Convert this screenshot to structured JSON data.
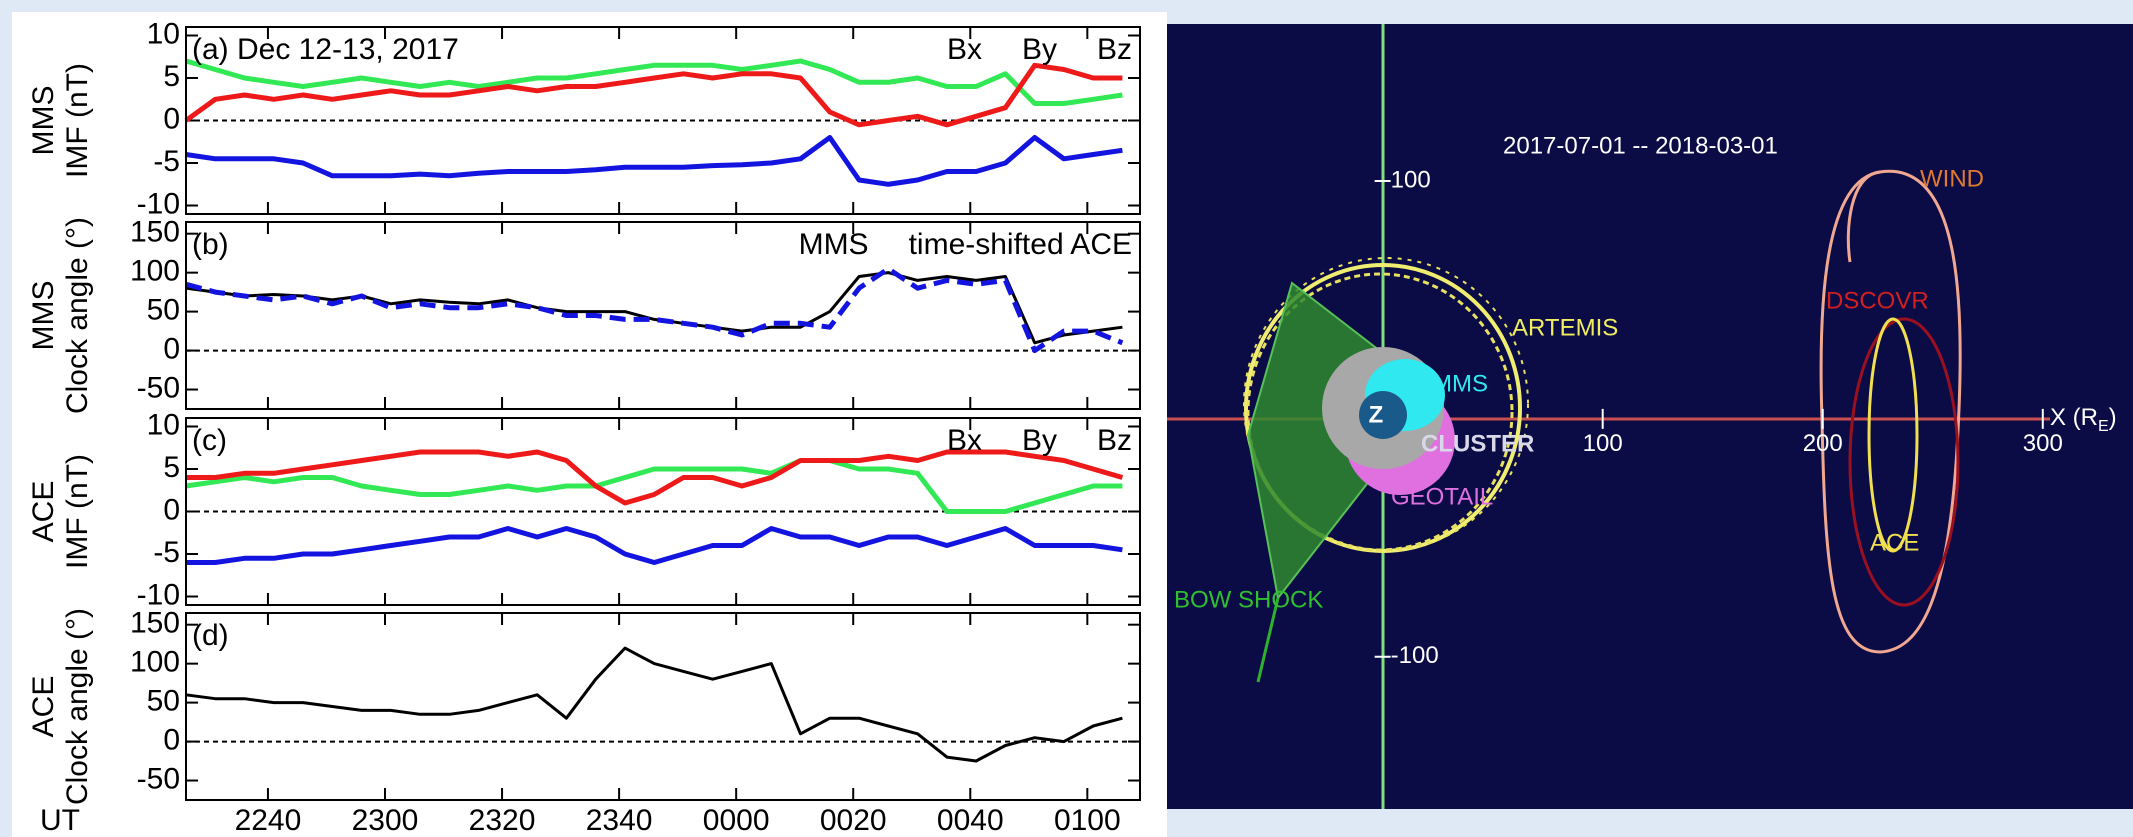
{
  "chart_data": [
    {
      "type": "line",
      "annotation": "(a) Dec 12-13, 2017",
      "ylabel": [
        "MMS",
        "IMF (nT)"
      ],
      "x": [
        "2226",
        "2231",
        "2236",
        "2241",
        "2246",
        "2251",
        "2256",
        "2301",
        "2306",
        "2311",
        "2316",
        "2321",
        "2326",
        "2331",
        "2336",
        "2341",
        "2346",
        "2351",
        "2356",
        "0001",
        "0006",
        "0011",
        "0016",
        "0021",
        "0026",
        "0031",
        "0036",
        "0041",
        "0046",
        "0051",
        "0056",
        "0101",
        "0106"
      ],
      "xlim": [
        "2226",
        "0109"
      ],
      "ylim": [
        -11,
        11
      ],
      "yticks": [
        -10,
        -5,
        0,
        5,
        10
      ],
      "reference_line": 0,
      "series": [
        {
          "name": "Bx",
          "color": "#1414e0",
          "values": [
            -4,
            -4.5,
            -4.5,
            -4.5,
            -5,
            -6.5,
            -6.5,
            -6.5,
            -6.3,
            -6.5,
            -6.2,
            -6,
            -6,
            -6,
            -5.8,
            -5.5,
            -5.5,
            -5.5,
            -5.3,
            -5.2,
            -5,
            -4.5,
            -2,
            -7,
            -7.5,
            -7,
            -6,
            -6,
            -5,
            -2,
            -4.5,
            -4,
            -3.5
          ]
        },
        {
          "name": "By",
          "color": "#33e855",
          "values": [
            7,
            6,
            5,
            4.5,
            4,
            4.5,
            5,
            4.5,
            4,
            4.5,
            4,
            4.5,
            5,
            5,
            5.5,
            6,
            6.5,
            6.5,
            6.5,
            6,
            6.5,
            7,
            6,
            4.5,
            4.5,
            5,
            4,
            4,
            5.5,
            2,
            2,
            2.5,
            3
          ]
        },
        {
          "name": "Bz",
          "color": "#ee1a1a",
          "values": [
            0,
            2.5,
            3,
            2.5,
            3,
            2.5,
            3,
            3.5,
            3,
            3,
            3.5,
            4,
            3.5,
            4,
            4,
            4.5,
            5,
            5.5,
            5,
            5.5,
            5.5,
            5,
            1,
            -0.5,
            0,
            0.5,
            -0.5,
            0.5,
            1.5,
            6.5,
            6,
            5,
            5
          ]
        }
      ]
    },
    {
      "type": "line",
      "annotation": "(b)",
      "ylabel": [
        "MMS",
        "Clock angle (°)"
      ],
      "x": [
        "2226",
        "2231",
        "2236",
        "2241",
        "2246",
        "2251",
        "2256",
        "2301",
        "2306",
        "2311",
        "2316",
        "2321",
        "2326",
        "2331",
        "2336",
        "2341",
        "2346",
        "2351",
        "2356",
        "0001",
        "0006",
        "0011",
        "0016",
        "0021",
        "0026",
        "0031",
        "0036",
        "0041",
        "0046",
        "0051",
        "0056",
        "0101",
        "0106"
      ],
      "xlim": [
        "2226",
        "0109"
      ],
      "ylim": [
        -75,
        165
      ],
      "yticks": [
        -50,
        0,
        50,
        100,
        150
      ],
      "reference_line": 0,
      "series": [
        {
          "name": "MMS",
          "color": "#000000",
          "values": [
            80,
            75,
            70,
            72,
            70,
            65,
            70,
            60,
            65,
            62,
            60,
            65,
            55,
            50,
            50,
            50,
            40,
            35,
            30,
            25,
            30,
            30,
            50,
            95,
            100,
            90,
            95,
            90,
            95,
            10,
            20,
            25,
            30
          ]
        },
        {
          "name": "time-shifted ACE",
          "color": "#1414e0",
          "style": "dashed",
          "values": [
            85,
            75,
            70,
            65,
            70,
            60,
            70,
            55,
            60,
            55,
            55,
            60,
            55,
            45,
            45,
            40,
            40,
            35,
            30,
            20,
            35,
            35,
            30,
            80,
            105,
            80,
            90,
            85,
            90,
            0,
            25,
            25,
            10
          ]
        }
      ]
    },
    {
      "type": "line",
      "annotation": "(c)",
      "ylabel": [
        "ACE",
        "IMF (nT)"
      ],
      "x": [
        "2226",
        "2231",
        "2236",
        "2241",
        "2246",
        "2251",
        "2256",
        "2301",
        "2306",
        "2311",
        "2316",
        "2321",
        "2326",
        "2331",
        "2336",
        "2341",
        "2346",
        "2351",
        "2356",
        "0001",
        "0006",
        "0011",
        "0016",
        "0021",
        "0026",
        "0031",
        "0036",
        "0041",
        "0046",
        "0051",
        "0056",
        "0101",
        "0106"
      ],
      "xlim": [
        "2226",
        "0109"
      ],
      "ylim": [
        -11,
        11
      ],
      "yticks": [
        -10,
        -5,
        0,
        5,
        10
      ],
      "reference_line": 0,
      "series": [
        {
          "name": "Bx",
          "color": "#1414e0",
          "values": [
            -6,
            -6,
            -5.5,
            -5.5,
            -5,
            -5,
            -4.5,
            -4,
            -3.5,
            -3,
            -3,
            -2,
            -3,
            -2,
            -3,
            -5,
            -6,
            -5,
            -4,
            -4,
            -2,
            -3,
            -3,
            -4,
            -3,
            -3,
            -4,
            -3,
            -2,
            -4,
            -4,
            -4,
            -4.5
          ]
        },
        {
          "name": "By",
          "color": "#33e855",
          "values": [
            3,
            3.5,
            4,
            3.5,
            4,
            4,
            3,
            2.5,
            2,
            2,
            2.5,
            3,
            2.5,
            3,
            3,
            4,
            5,
            5,
            5,
            5,
            4.5,
            6,
            6,
            5,
            5,
            4.5,
            0,
            0,
            0,
            1,
            2,
            3,
            3
          ]
        },
        {
          "name": "Bz",
          "color": "#ee1a1a",
          "values": [
            4,
            4,
            4.5,
            4.5,
            5,
            5.5,
            6,
            6.5,
            7,
            7,
            7,
            6.5,
            7,
            6,
            3,
            1,
            2,
            4,
            4,
            3,
            4,
            6,
            6,
            6,
            6.5,
            6,
            7,
            7,
            7,
            6.5,
            6,
            5,
            4
          ]
        }
      ]
    },
    {
      "type": "line",
      "annotation": "(d)",
      "ylabel": [
        "ACE",
        "Clock angle (°)"
      ],
      "xlabel": "UT",
      "x": [
        "2226",
        "2231",
        "2236",
        "2241",
        "2246",
        "2251",
        "2256",
        "2301",
        "2306",
        "2311",
        "2316",
        "2321",
        "2326",
        "2331",
        "2336",
        "2341",
        "2346",
        "2351",
        "2356",
        "0001",
        "0006",
        "0011",
        "0016",
        "0021",
        "0026",
        "0031",
        "0036",
        "0041",
        "0046",
        "0051",
        "0056",
        "0101",
        "0106"
      ],
      "xlim": [
        "2226",
        "0109"
      ],
      "ylim": [
        -75,
        165
      ],
      "yticks": [
        -50,
        0,
        50,
        100,
        150
      ],
      "reference_line": 0,
      "xticks": [
        "2240",
        "2300",
        "2320",
        "2340",
        "0000",
        "0020",
        "0040",
        "0100"
      ],
      "series": [
        {
          "color": "#000000",
          "values": [
            60,
            55,
            55,
            50,
            50,
            45,
            40,
            40,
            35,
            35,
            40,
            50,
            60,
            30,
            80,
            120,
            100,
            90,
            80,
            90,
            100,
            10,
            30,
            30,
            20,
            10,
            -20,
            -25,
            -5,
            5,
            0,
            20,
            30
          ]
        }
      ]
    },
    {
      "type": "orbit",
      "title": "2017-07-01 -- 2018-03-01",
      "xlabel": [
        "X (R",
        "E",
        ")"
      ],
      "xlim": [
        -98,
        341
      ],
      "ylim": [
        -164,
        166
      ],
      "xticks": [
        100,
        200,
        300
      ],
      "yticks": [
        100,
        -100
      ],
      "spacecraft": [
        "WIND",
        "DSCOVR",
        "ARTEMIS",
        "MMS",
        "CLUSTER",
        "GEOTAIL",
        "ACE"
      ],
      "annotations": [
        "Z",
        "BOW SHOCK"
      ]
    }
  ]
}
